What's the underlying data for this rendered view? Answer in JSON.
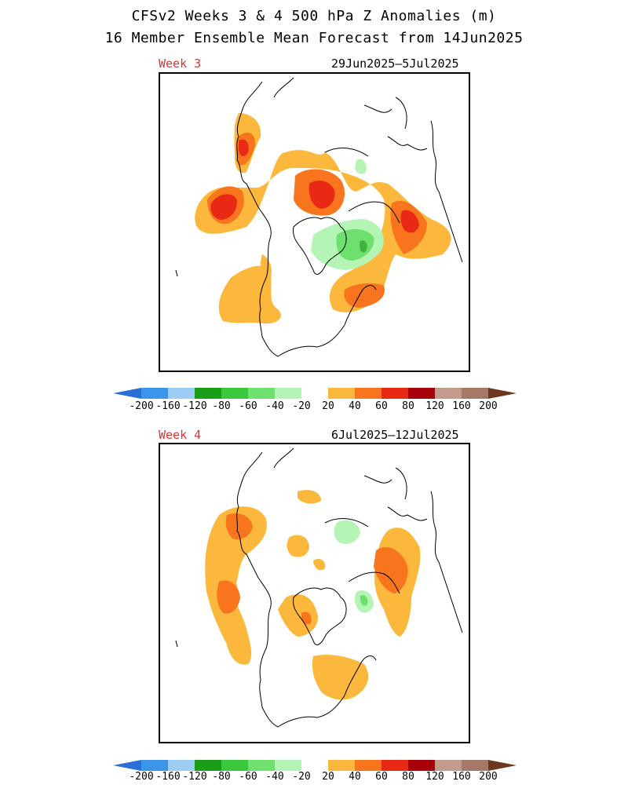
{
  "title_line1": "CFSv2 Weeks 3 & 4 500 hPa Z Anomalies (m)",
  "title_line2": "16 Member Ensemble Mean Forecast from 14Jun2025",
  "panels": [
    {
      "label": "Week 3",
      "dates": "29Jun2025–5Jul2025"
    },
    {
      "label": "Week 4",
      "dates": "6Jul2025–12Jul2025"
    }
  ],
  "colorbar": {
    "tick_labels": [
      "-200",
      "-160",
      "-120",
      "-80",
      "-60",
      "-40",
      "-20",
      "20",
      "40",
      "60",
      "80",
      "120",
      "160",
      "200"
    ],
    "colors": [
      "#2a6ed6",
      "#3b95e8",
      "#9ccdf4",
      "#1a9e1a",
      "#3cc83c",
      "#6ee06e",
      "#b4f4b4",
      "#ffffff",
      "#fbb83c",
      "#f8751e",
      "#e82a14",
      "#a8000a",
      "#c49a8c",
      "#a67868",
      "#6e3820"
    ]
  },
  "colors": {
    "orange_light": "#fbb83c",
    "orange": "#f8751e",
    "red": "#e82a14",
    "dark_red": "#c01010",
    "green_light": "#b4f4b4",
    "green": "#6ee06e",
    "green_dark": "#3cb43c",
    "label_red": "#e03030"
  }
}
